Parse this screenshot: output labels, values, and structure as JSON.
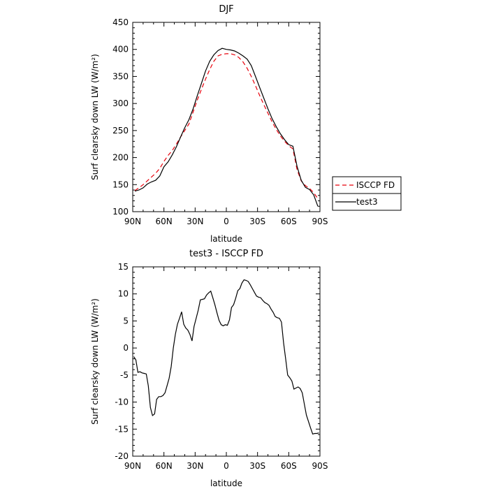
{
  "chart_data": [
    {
      "type": "line",
      "title": "DJF",
      "xlabel": "latitude",
      "ylabel": "Surf clearsky down LW (W/m²)",
      "xlim": [
        -90,
        90
      ],
      "ylim": [
        100,
        450
      ],
      "x_ticks": [
        {
          "value": -90,
          "label": "90N"
        },
        {
          "value": -60,
          "label": "60N"
        },
        {
          "value": -30,
          "label": "30N"
        },
        {
          "value": 0,
          "label": "0"
        },
        {
          "value": 30,
          "label": "30S"
        },
        {
          "value": 60,
          "label": "60S"
        },
        {
          "value": 90,
          "label": "90S"
        }
      ],
      "y_ticks": [
        100,
        150,
        200,
        250,
        300,
        350,
        400,
        450
      ],
      "legend": {
        "placement": "right",
        "entries": [
          "ISCCP FD",
          "test3"
        ]
      },
      "series": [
        {
          "name": "ISCCP FD",
          "color": "#e8000b",
          "dash": true,
          "x": [
            -88,
            -84,
            -80,
            -76,
            -72,
            -68,
            -64,
            -60,
            -56,
            -52,
            -48,
            -44,
            -40,
            -36,
            -32,
            -28,
            -24,
            -20,
            -16,
            -12,
            -8,
            -4,
            0,
            4,
            8,
            12,
            16,
            20,
            24,
            28,
            32,
            36,
            40,
            44,
            48,
            52,
            56,
            60,
            64,
            68,
            72,
            76,
            80,
            84,
            88
          ],
          "y": [
            139,
            144,
            150,
            157,
            164,
            171,
            180,
            193,
            204,
            213,
            225,
            238,
            250,
            262,
            284,
            306,
            326,
            345,
            363,
            378,
            388,
            391,
            392,
            392,
            390,
            385,
            377,
            365,
            350,
            333,
            315,
            298,
            282,
            266,
            252,
            240,
            230,
            222,
            216,
            178,
            157,
            148,
            143,
            135,
            124
          ]
        },
        {
          "name": "test3",
          "color": "#000000",
          "dash": false,
          "x": [
            -88,
            -84,
            -80,
            -76,
            -72,
            -68,
            -64,
            -60,
            -56,
            -52,
            -48,
            -44,
            -40,
            -36,
            -32,
            -28,
            -24,
            -20,
            -16,
            -12,
            -8,
            -4,
            0,
            4,
            8,
            12,
            16,
            20,
            24,
            28,
            32,
            36,
            40,
            44,
            48,
            52,
            56,
            60,
            64,
            68,
            72,
            76,
            80,
            84,
            88
          ],
          "y": [
            138,
            140,
            144,
            151,
            155,
            158,
            166,
            183,
            192,
            205,
            220,
            238,
            255,
            270,
            290,
            314,
            337,
            360,
            378,
            390,
            398,
            402,
            400,
            399,
            397,
            393,
            388,
            382,
            370,
            350,
            330,
            310,
            290,
            272,
            257,
            244,
            233,
            224,
            221,
            184,
            158,
            145,
            141,
            131,
            110
          ]
        }
      ]
    },
    {
      "type": "line",
      "title": "test3 - ISCCP FD",
      "xlabel": "latitude",
      "ylabel": "Surf clearsky down LW (W/m²)",
      "xlim": [
        -90,
        90
      ],
      "ylim": [
        -20,
        15
      ],
      "x_ticks": [
        {
          "value": -90,
          "label": "90N"
        },
        {
          "value": -60,
          "label": "60N"
        },
        {
          "value": -30,
          "label": "30N"
        },
        {
          "value": 0,
          "label": "0"
        },
        {
          "value": 30,
          "label": "30S"
        },
        {
          "value": 60,
          "label": "60S"
        },
        {
          "value": 90,
          "label": "90S"
        }
      ],
      "y_ticks": [
        -20,
        -15,
        -10,
        -5,
        0,
        5,
        10,
        15
      ],
      "series": [
        {
          "name": "test3 - ISCCP FD",
          "color": "#000000",
          "dash": false,
          "x": [
            -89,
            -87,
            -85,
            -83,
            -81,
            -79,
            -77,
            -75,
            -73,
            -71,
            -69,
            -67,
            -65,
            -63,
            -61,
            -59,
            -57,
            -55,
            -53,
            -51,
            -49,
            -47,
            -45,
            -43,
            -41,
            -39,
            -37,
            -35,
            -33,
            -31,
            -29,
            -27,
            -25,
            -23,
            -21,
            -19,
            -17,
            -15,
            -13,
            -11,
            -9,
            -7,
            -5,
            -3,
            -1,
            1,
            3,
            5,
            7,
            9,
            11,
            13,
            15,
            17,
            19,
            21,
            23,
            25,
            27,
            29,
            31,
            33,
            35,
            37,
            39,
            41,
            43,
            45,
            47,
            49,
            51,
            53,
            55,
            57,
            59,
            61,
            63,
            65,
            67,
            69,
            71,
            73,
            75,
            77,
            79,
            81,
            83,
            85,
            87,
            89
          ],
          "y": [
            -1.6,
            -2.2,
            -4.5,
            -4.4,
            -4.6,
            -4.7,
            -4.8,
            -7,
            -11,
            -12.5,
            -12.2,
            -9.5,
            -9,
            -9,
            -8.8,
            -8.3,
            -7,
            -5.6,
            -3.4,
            0,
            2.5,
            4.4,
            5.5,
            6.7,
            4.4,
            3.7,
            3.3,
            2.5,
            1.3,
            4,
            5.5,
            7,
            8.9,
            9,
            9.1,
            9.8,
            10.2,
            10.5,
            9.3,
            8,
            6.5,
            5.1,
            4.3,
            4.1,
            4.3,
            4.2,
            5.2,
            7.5,
            8,
            9.2,
            10.6,
            11,
            12,
            12.6,
            12.5,
            12.3,
            11.7,
            11,
            10.3,
            9.6,
            9.4,
            9.3,
            8.8,
            8.4,
            8.2,
            7.9,
            7.2,
            6.6,
            5.8,
            5.6,
            5.5,
            4.8,
            1,
            -2,
            -5,
            -5.5,
            -6.1,
            -7.6,
            -7.4,
            -7.2,
            -7.5,
            -8.3,
            -10.4,
            -12.4,
            -13.6,
            -14.8,
            -15.9,
            -15.8,
            -15.8,
            -15.7
          ]
        }
      ]
    }
  ]
}
